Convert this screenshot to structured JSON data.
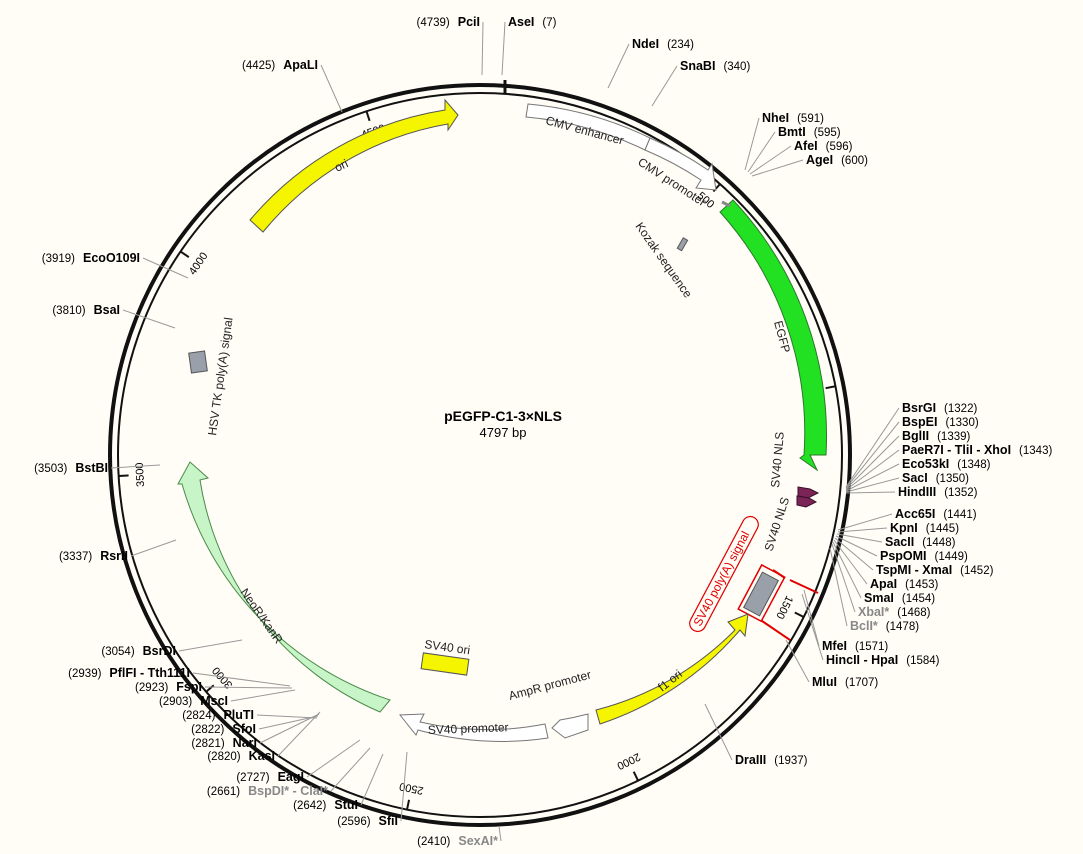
{
  "plasmid": {
    "name": "pEGFP-C1-3×NLS",
    "size_label": "4797 bp",
    "length": 4797
  },
  "colors": {
    "background": "#fffdf6",
    "egfp": "#22e022",
    "ori": "#f5f500",
    "f1_ori": "#f5f500",
    "sv40_ori": "#f5f500",
    "neor": "#c8f5c8",
    "promoter": "#ffffff",
    "terminator": "#9aa0aa",
    "nls": "#7b2456",
    "highlight": "#e00000"
  },
  "ticks": [
    {
      "pos": 500,
      "label": "500"
    },
    {
      "pos": 1000,
      "label": "1000"
    },
    {
      "pos": 1500,
      "label": "1500"
    },
    {
      "pos": 2000,
      "label": "2000"
    },
    {
      "pos": 2500,
      "label": "2500"
    },
    {
      "pos": 3000,
      "label": "3000"
    },
    {
      "pos": 3500,
      "label": "3500"
    },
    {
      "pos": 4000,
      "label": "4000"
    },
    {
      "pos": 4500,
      "label": "4500"
    }
  ],
  "features": [
    {
      "id": "cmv-enhancer",
      "label": "CMV enhancer",
      "start": 60,
      "end": 440,
      "kind": "promoter",
      "strand": 1
    },
    {
      "id": "cmv-promoter",
      "label": "CMV promoter",
      "start": 440,
      "end": 640,
      "kind": "promoter",
      "strand": 1
    },
    {
      "id": "egfp",
      "label": "EGFP",
      "start": 612,
      "end": 1330,
      "kind": "cds",
      "strand": 1
    },
    {
      "id": "kozak",
      "label": "Kozak sequence",
      "start": 0,
      "end": 0,
      "kind": "misc",
      "strand": 0
    },
    {
      "id": "sv40-nls-1",
      "label": "SV40 NLS",
      "start": 0,
      "end": 0,
      "kind": "nls",
      "strand": 1
    },
    {
      "id": "sv40-nls-2",
      "label": "SV40 NLS",
      "start": 0,
      "end": 0,
      "kind": "nls",
      "strand": 1
    },
    {
      "id": "sv40-polya",
      "label": "SV40 poly(A) signal",
      "start": 0,
      "end": 0,
      "kind": "terminator",
      "strand": 0
    },
    {
      "id": "f1-ori",
      "label": "f1 ori",
      "start": 1640,
      "end": 2100,
      "kind": "ori",
      "strand": -1
    },
    {
      "id": "ampr-promoter",
      "label": "AmpR promoter",
      "start": 2110,
      "end": 2210,
      "kind": "promoter",
      "strand": -1
    },
    {
      "id": "sv40-promoter",
      "label": "SV40 promoter",
      "start": 2230,
      "end": 2580,
      "kind": "promoter",
      "strand": -1
    },
    {
      "id": "sv40-ori",
      "label": "SV40 ori",
      "start": 0,
      "end": 0,
      "kind": "ori",
      "strand": 0
    },
    {
      "id": "neor",
      "label": "NeoR/KanR",
      "start": 2630,
      "end": 3420,
      "kind": "cds",
      "strand": -1
    },
    {
      "id": "hsv-tk-polya",
      "label": "HSV TK poly(A) signal",
      "start": 0,
      "end": 0,
      "kind": "terminator",
      "strand": 0
    },
    {
      "id": "ori",
      "label": "ori",
      "start": 4230,
      "end": 4760,
      "kind": "ori",
      "strand": 1
    }
  ],
  "sites": [
    {
      "name": "PciI",
      "pos": "(4739)",
      "side": "left"
    },
    {
      "name": "AseI",
      "pos": "(7)",
      "side": "right"
    },
    {
      "name": "NdeI",
      "pos": "(234)",
      "side": "right"
    },
    {
      "name": "SnaBI",
      "pos": "(340)",
      "side": "right"
    },
    {
      "name": "NheI",
      "pos": "(591)",
      "side": "right"
    },
    {
      "name": "BmtI",
      "pos": "(595)",
      "side": "right"
    },
    {
      "name": "AfeI",
      "pos": "(596)",
      "side": "right"
    },
    {
      "name": "AgeI",
      "pos": "(600)",
      "side": "right"
    },
    {
      "name": "BsrGI",
      "pos": "(1322)",
      "side": "right"
    },
    {
      "name": "BspEI",
      "pos": "(1330)",
      "side": "right"
    },
    {
      "name": "BglII",
      "pos": "(1339)",
      "side": "right"
    },
    {
      "name": "PaeR7I - TliI - XhoI",
      "pos": "(1343)",
      "side": "right"
    },
    {
      "name": "Eco53kI",
      "pos": "(1348)",
      "side": "right"
    },
    {
      "name": "SacI",
      "pos": "(1350)",
      "side": "right"
    },
    {
      "name": "HindIII",
      "pos": "(1352)",
      "side": "right"
    },
    {
      "name": "Acc65I",
      "pos": "(1441)",
      "side": "right"
    },
    {
      "name": "KpnI",
      "pos": "(1445)",
      "side": "right"
    },
    {
      "name": "SacII",
      "pos": "(1448)",
      "side": "right"
    },
    {
      "name": "PspOMI",
      "pos": "(1449)",
      "side": "right"
    },
    {
      "name": "TspMI - XmaI",
      "pos": "(1452)",
      "side": "right"
    },
    {
      "name": "ApaI",
      "pos": "(1453)",
      "side": "right"
    },
    {
      "name": "SmaI",
      "pos": "(1454)",
      "side": "right"
    },
    {
      "name": "XbaI*",
      "pos": "(1468)",
      "side": "right",
      "muted": true
    },
    {
      "name": "BclI*",
      "pos": "(1478)",
      "side": "right",
      "muted": true
    },
    {
      "name": "MfeI",
      "pos": "(1571)",
      "side": "right"
    },
    {
      "name": "HincII - HpaI",
      "pos": "(1584)",
      "side": "right"
    },
    {
      "name": "MluI",
      "pos": "(1707)",
      "side": "right"
    },
    {
      "name": "DraIII",
      "pos": "(1937)",
      "side": "right"
    },
    {
      "name": "SexAI*",
      "pos": "(2410)",
      "side": "left",
      "muted": true
    },
    {
      "name": "SfiI",
      "pos": "(2596)",
      "side": "left"
    },
    {
      "name": "StuI",
      "pos": "(2642)",
      "side": "left"
    },
    {
      "name": "BspDI* - ClaI*",
      "pos": "(2661)",
      "side": "left",
      "muted": true
    },
    {
      "name": "EagI",
      "pos": "(2727)",
      "side": "left"
    },
    {
      "name": "KasI",
      "pos": "(2820)",
      "side": "left"
    },
    {
      "name": "NarI",
      "pos": "(2821)",
      "side": "left"
    },
    {
      "name": "SfoI",
      "pos": "(2822)",
      "side": "left"
    },
    {
      "name": "PluTI",
      "pos": "(2824)",
      "side": "left"
    },
    {
      "name": "MscI",
      "pos": "(2903)",
      "side": "left"
    },
    {
      "name": "FspI",
      "pos": "(2923)",
      "side": "left"
    },
    {
      "name": "PflFI - Tth111I",
      "pos": "(2939)",
      "side": "left"
    },
    {
      "name": "BsrDI",
      "pos": "(3054)",
      "side": "left"
    },
    {
      "name": "RsrII",
      "pos": "(3337)",
      "side": "left"
    },
    {
      "name": "BstBI",
      "pos": "(3503)",
      "side": "left"
    },
    {
      "name": "BsaI",
      "pos": "(3810)",
      "side": "left"
    },
    {
      "name": "EcoO109I",
      "pos": "(3919)",
      "side": "left"
    },
    {
      "name": "ApaLI",
      "pos": "(4425)",
      "side": "left"
    }
  ]
}
